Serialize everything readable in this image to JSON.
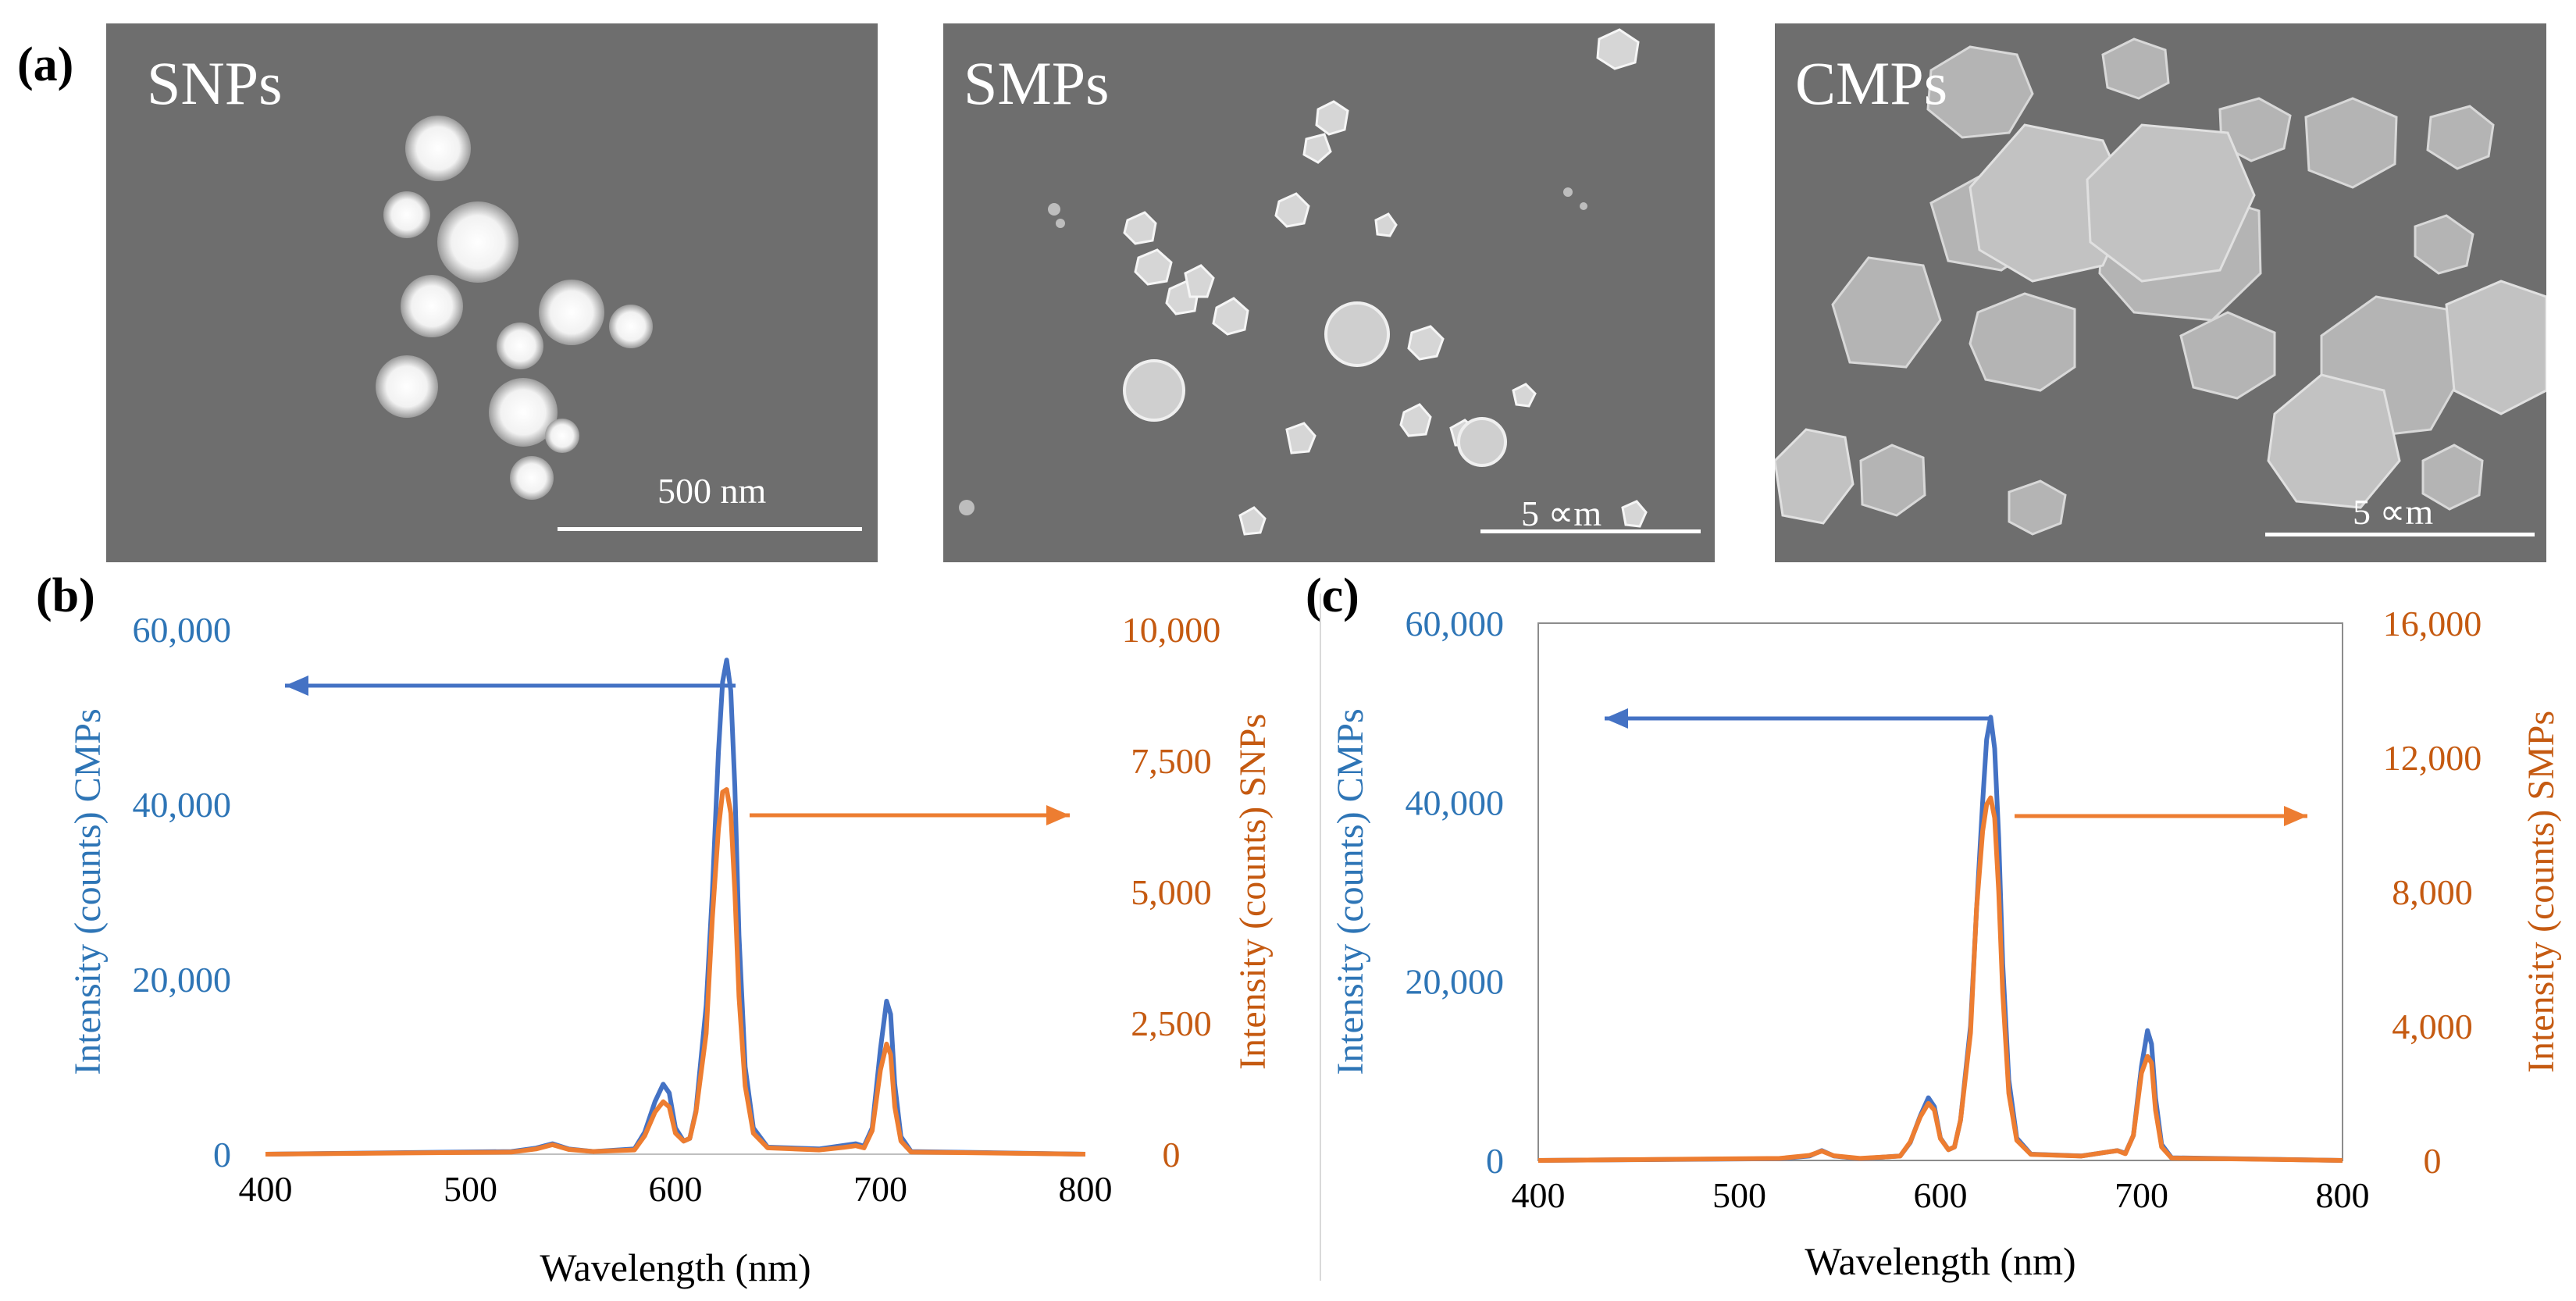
{
  "panels": {
    "a": {
      "letter": "(a)",
      "images": [
        {
          "label": "SNPs",
          "scale_text": "500 nm"
        },
        {
          "label": "SMPs",
          "scale_text": "5 ∝m"
        },
        {
          "label": "CMPs",
          "scale_text": "5 ∝m"
        }
      ]
    },
    "b": {
      "letter": "(b)"
    },
    "c": {
      "letter": "(c)"
    }
  },
  "colors": {
    "blue_series": "#4472C4",
    "orange_series": "#ED7D31",
    "blue_axis_text": "#2E75B6",
    "orange_axis_text": "#C55A11"
  },
  "chart_data": [
    {
      "id": "b",
      "type": "line",
      "xlabel": "Wavelength (nm)",
      "ylabel_left": "Intensity (counts) CMPs",
      "ylabel_right": "Intensity (counts) SNPs",
      "xlim": [
        400,
        800
      ],
      "ylim_left": [
        0,
        60000
      ],
      "ylim_right": [
        0,
        10000
      ],
      "x_ticks": [
        "400",
        "500",
        "600",
        "700",
        "800"
      ],
      "y_ticks_left": [
        "0",
        "20,000",
        "40,000",
        "60,000"
      ],
      "y_ticks_right": [
        "0",
        "2,500",
        "5,000",
        "7,500",
        "10,000"
      ],
      "series": [
        {
          "name": "CMPs",
          "axis": "left",
          "color": "#4472C4",
          "x": [
            400,
            520,
            532,
            540,
            548,
            560,
            580,
            585,
            590,
            594,
            597,
            600,
            604,
            607,
            610,
            615,
            618,
            621,
            623,
            625,
            627,
            629,
            631,
            634,
            638,
            645,
            670,
            682,
            688,
            692,
            696,
            700,
            703,
            705,
            707,
            710,
            715,
            800
          ],
          "y": [
            0,
            300,
            700,
            1200,
            600,
            300,
            600,
            2500,
            6000,
            8000,
            7000,
            3000,
            1500,
            1800,
            5000,
            17000,
            30000,
            46000,
            54000,
            56500,
            53000,
            42000,
            25000,
            10000,
            3000,
            800,
            600,
            1000,
            1200,
            900,
            3000,
            12000,
            17500,
            16000,
            8000,
            2000,
            300,
            0
          ]
        },
        {
          "name": "SNPs",
          "axis": "right",
          "color": "#ED7D31",
          "x": [
            400,
            520,
            532,
            540,
            548,
            560,
            580,
            585,
            590,
            594,
            597,
            600,
            604,
            607,
            610,
            615,
            618,
            621,
            623,
            625,
            627,
            629,
            631,
            634,
            638,
            645,
            670,
            682,
            688,
            692,
            696,
            700,
            703,
            705,
            707,
            710,
            715,
            800
          ],
          "y": [
            0,
            40,
            100,
            180,
            90,
            50,
            80,
            350,
            800,
            1000,
            900,
            400,
            250,
            300,
            800,
            2300,
            4500,
            6200,
            6900,
            6950,
            6500,
            5000,
            3000,
            1300,
            400,
            120,
            80,
            130,
            160,
            120,
            450,
            1600,
            2100,
            1900,
            900,
            250,
            40,
            0
          ]
        }
      ]
    },
    {
      "id": "c",
      "type": "line",
      "xlabel": "Wavelength (nm)",
      "ylabel_left": "Intensity (counts) CMPs",
      "ylabel_right": "Intensity (counts) SMPs",
      "xlim": [
        400,
        800
      ],
      "ylim_left": [
        0,
        60000
      ],
      "ylim_right": [
        0,
        16000
      ],
      "x_ticks": [
        "400",
        "500",
        "600",
        "700",
        "800"
      ],
      "y_ticks_left": [
        "0",
        "20,000",
        "40,000",
        "60,000"
      ],
      "y_ticks_right": [
        "0",
        "4,000",
        "8,000",
        "12,000",
        "16,000"
      ],
      "series": [
        {
          "name": "CMPs",
          "axis": "left",
          "color": "#4472C4",
          "x": [
            400,
            520,
            535,
            541,
            547,
            560,
            580,
            585,
            590,
            594,
            597,
            600,
            604,
            607,
            610,
            615,
            618,
            621,
            623,
            625,
            627,
            629,
            631,
            634,
            638,
            645,
            670,
            682,
            688,
            692,
            696,
            700,
            703,
            705,
            707,
            710,
            715,
            800
          ],
          "y": [
            0,
            200,
            500,
            1100,
            500,
            200,
            500,
            2000,
            5000,
            7000,
            6000,
            2500,
            1200,
            1500,
            4500,
            15000,
            28000,
            40000,
            47000,
            49500,
            46000,
            36000,
            22000,
            9000,
            2500,
            700,
            500,
            900,
            1100,
            800,
            2800,
            10500,
            14500,
            13000,
            7000,
            1800,
            300,
            0
          ]
        },
        {
          "name": "SMPs",
          "axis": "right",
          "color": "#ED7D31",
          "x": [
            400,
            520,
            535,
            541,
            547,
            560,
            580,
            585,
            590,
            594,
            597,
            600,
            604,
            607,
            610,
            615,
            618,
            621,
            623,
            625,
            627,
            629,
            631,
            634,
            638,
            645,
            670,
            682,
            688,
            692,
            696,
            700,
            703,
            705,
            707,
            710,
            715,
            800
          ],
          "y": [
            0,
            60,
            150,
            280,
            140,
            60,
            130,
            550,
            1300,
            1700,
            1500,
            650,
            320,
            400,
            1200,
            3800,
            7500,
            9800,
            10600,
            10800,
            10200,
            8000,
            5000,
            2000,
            600,
            180,
            130,
            240,
            290,
            200,
            750,
            2600,
            3100,
            2900,
            1500,
            400,
            70,
            0
          ]
        }
      ]
    }
  ]
}
